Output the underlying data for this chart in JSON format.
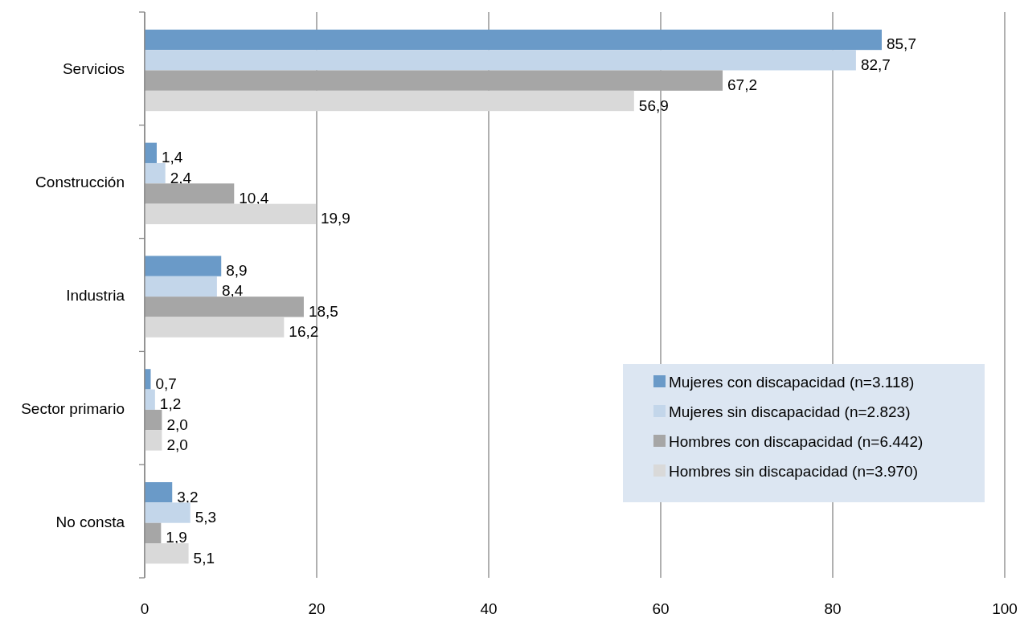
{
  "chart_data": {
    "type": "bar",
    "orientation": "horizontal",
    "categories": [
      "Servicios",
      "Construcción",
      "Industria",
      "Sector primario",
      "No consta"
    ],
    "series": [
      {
        "name": "Mujeres con discapacidad (n=3.118)",
        "color": "#6a9ac8",
        "values": [
          85.7,
          1.4,
          8.9,
          0.7,
          3.2
        ],
        "value_labels": [
          "85,7",
          "1,4",
          "8,9",
          "0,7",
          "3,2"
        ]
      },
      {
        "name": "Mujeres sin discapacidad (n=2.823)",
        "color": "#c3d6ea",
        "values": [
          82.7,
          2.4,
          8.4,
          1.2,
          5.3
        ],
        "value_labels": [
          "82,7",
          "2,4",
          "8,4",
          "1,2",
          "5,3"
        ]
      },
      {
        "name": "Hombres con discapacidad (n=6.442)",
        "color": "#a6a6a6",
        "values": [
          67.2,
          10.4,
          18.5,
          2.0,
          1.9
        ],
        "value_labels": [
          "67,2",
          "10,4",
          "18,5",
          "2,0",
          "1,9"
        ]
      },
      {
        "name": "Hombres sin discapacidad (n=3.970)",
        "color": "#d9d9d9",
        "values": [
          56.9,
          19.9,
          16.2,
          2.0,
          5.1
        ],
        "value_labels": [
          "56,9",
          "19,9",
          "16,2",
          "2,0",
          "5,1"
        ]
      }
    ],
    "xlim": [
      0,
      100
    ],
    "xticks": [
      0,
      20,
      40,
      60,
      80,
      100
    ],
    "grid": "x",
    "legend": "bottom right"
  }
}
